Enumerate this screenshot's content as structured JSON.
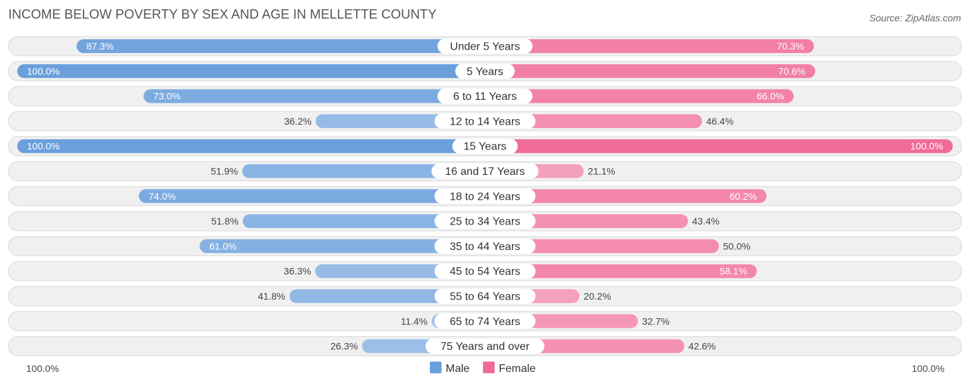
{
  "chart_data": {
    "type": "bar",
    "orientation": "horizontal-diverging",
    "title": "INCOME BELOW POVERTY BY SEX AND AGE IN MELLETTE COUNTY",
    "source": "Source: ZipAtlas.com",
    "categories": [
      "Under 5 Years",
      "5 Years",
      "6 to 11 Years",
      "12 to 14 Years",
      "15 Years",
      "16 and 17 Years",
      "18 to 24 Years",
      "25 to 34 Years",
      "35 to 44 Years",
      "45 to 54 Years",
      "55 to 64 Years",
      "65 to 74 Years",
      "75 Years and over"
    ],
    "series": [
      {
        "name": "Male",
        "color": "#6a9fdc",
        "values": [
          87.3,
          100.0,
          73.0,
          36.2,
          100.0,
          51.9,
          74.0,
          51.8,
          61.0,
          36.3,
          41.8,
          11.4,
          26.3
        ],
        "labels": [
          "87.3%",
          "100.0%",
          "73.0%",
          "36.2%",
          "100.0%",
          "51.9%",
          "74.0%",
          "51.8%",
          "61.0%",
          "36.3%",
          "41.8%",
          "11.4%",
          "26.3%"
        ]
      },
      {
        "name": "Female",
        "color": "#f06b98",
        "values": [
          70.3,
          70.6,
          66.0,
          46.4,
          100.0,
          21.1,
          60.2,
          43.4,
          50.0,
          58.1,
          20.2,
          32.7,
          42.6
        ],
        "labels": [
          "70.3%",
          "70.6%",
          "66.0%",
          "46.4%",
          "100.0%",
          "21.1%",
          "60.2%",
          "43.4%",
          "50.0%",
          "58.1%",
          "20.2%",
          "32.7%",
          "42.6%"
        ]
      }
    ],
    "xlim": [
      0,
      100
    ],
    "axis_left_label": "100.0%",
    "axis_right_label": "100.0%",
    "legend": {
      "position": "bottom-center",
      "items": [
        "Male",
        "Female"
      ]
    }
  }
}
